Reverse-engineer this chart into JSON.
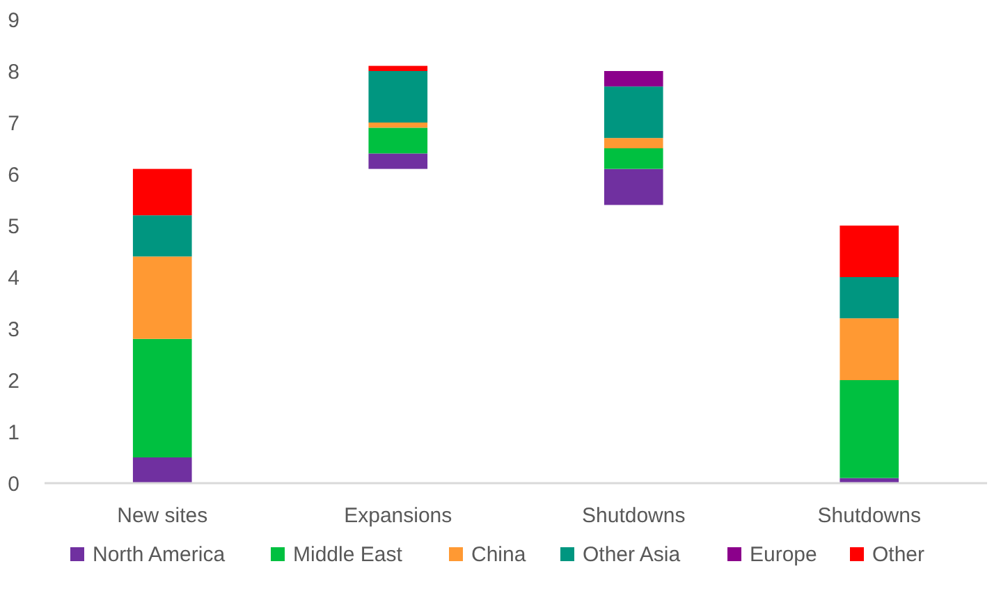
{
  "chart_data": {
    "type": "bar",
    "categories": [
      "New sites",
      "Expansions",
      "Shutdowns",
      "Shutdowns"
    ],
    "series": [
      {
        "name": "North America",
        "color": "#7030a0",
        "values": [
          0.5,
          0.3,
          0.7,
          0.1
        ],
        "base": [
          0,
          6.1,
          5.4,
          0
        ]
      },
      {
        "name": "Middle East",
        "color": "#00c040",
        "values": [
          2.3,
          0.5,
          0.4,
          1.9
        ],
        "base": [
          0.5,
          6.4,
          6.1,
          0.1
        ]
      },
      {
        "name": "China",
        "color": "#ff9933",
        "values": [
          1.6,
          0.1,
          0.2,
          1.2
        ],
        "base": [
          2.8,
          6.9,
          6.5,
          2.0
        ]
      },
      {
        "name": "Other Asia",
        "color": "#009680",
        "values": [
          0.8,
          1.0,
          1.0,
          0.8
        ],
        "base": [
          4.4,
          7.0,
          6.7,
          3.2
        ]
      },
      {
        "name": "Europe",
        "color": "#8b008b",
        "values": [
          null,
          null,
          0.3,
          null
        ],
        "base": [
          null,
          null,
          7.7,
          null
        ]
      },
      {
        "name": "Other",
        "color": "#ff0000",
        "values": [
          0.9,
          0.1,
          null,
          1.0
        ],
        "base": [
          5.2,
          8.0,
          null,
          4.0
        ]
      }
    ],
    "ylim": [
      0,
      9
    ],
    "yticks": [
      0,
      1,
      2,
      3,
      4,
      5,
      6,
      7,
      8,
      9
    ],
    "legend": "bottom"
  }
}
